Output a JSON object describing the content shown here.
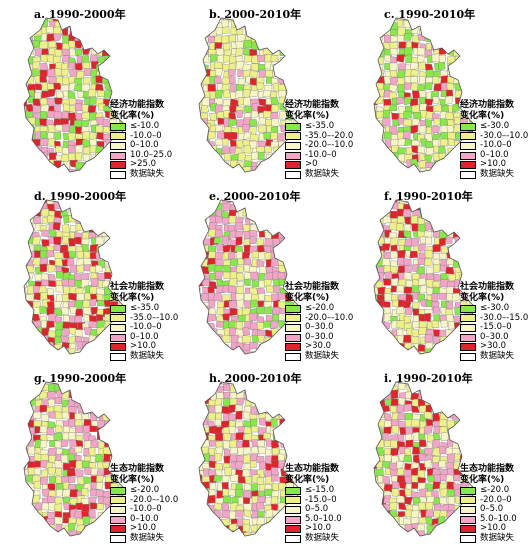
{
  "colors": {
    "green": "#86e84a",
    "yellow": "#eef08a",
    "cream": "#f8f6c6",
    "pink": "#f2a5c7",
    "red": "#e0242c",
    "missing": "#ffffff",
    "border": "#7a7a7a"
  },
  "panels": [
    {
      "title": "a. 1990-2000年",
      "legend_title": [
        "经济功能指数",
        "变化率(%)"
      ],
      "legend": [
        {
          "label": "≤-10.0",
          "color": "green"
        },
        {
          "label": "-10.0–0",
          "color": "yellow"
        },
        {
          "label": "0–10.0",
          "color": "cream"
        },
        {
          "label": "10.0–25.0",
          "color": "pink"
        },
        {
          "label": ">25.0",
          "color": "red"
        },
        {
          "label": "数据缺失",
          "color": "missing"
        }
      ],
      "distribution": {
        "green": 0.18,
        "yellow": 0.32,
        "cream": 0.16,
        "pink": 0.16,
        "red": 0.18
      }
    },
    {
      "title": "b. 2000-2010年",
      "legend_title": [
        "经济功能指数",
        "变化率(%)"
      ],
      "legend": [
        {
          "label": "≤-35.0",
          "color": "green"
        },
        {
          "label": "-35.0–-20.0",
          "color": "yellow"
        },
        {
          "label": "-20.0–-10.0",
          "color": "cream"
        },
        {
          "label": "-10.0–0",
          "color": "pink"
        },
        {
          "label": ">0",
          "color": "red"
        },
        {
          "label": "数据缺失",
          "color": "missing"
        }
      ],
      "distribution": {
        "green": 0.14,
        "yellow": 0.36,
        "cream": 0.32,
        "pink": 0.12,
        "red": 0.06
      }
    },
    {
      "title": "c. 1990-2010年",
      "legend_title": [
        "经济功能指数",
        "变化率(%)"
      ],
      "legend": [
        {
          "label": "≤-30.0",
          "color": "green"
        },
        {
          "label": "-30.0–-10.0",
          "color": "yellow"
        },
        {
          "label": "-10.0–0",
          "color": "cream"
        },
        {
          "label": "0–10.0",
          "color": "pink"
        },
        {
          "label": ">10.0",
          "color": "red"
        },
        {
          "label": "数据缺失",
          "color": "missing"
        }
      ],
      "distribution": {
        "green": 0.22,
        "yellow": 0.34,
        "cream": 0.22,
        "pink": 0.1,
        "red": 0.12
      }
    },
    {
      "title": "d. 1990-2000年",
      "legend_title": [
        "社会功能指数",
        "变化率(%)"
      ],
      "legend": [
        {
          "label": "≤-35.0",
          "color": "green"
        },
        {
          "label": "-35.0–-10.0",
          "color": "yellow"
        },
        {
          "label": "-10.0–0",
          "color": "cream"
        },
        {
          "label": "0–10.0",
          "color": "pink"
        },
        {
          "label": ">10.0",
          "color": "red"
        },
        {
          "label": "数据缺失",
          "color": "missing"
        }
      ],
      "distribution": {
        "green": 0.1,
        "yellow": 0.3,
        "cream": 0.2,
        "pink": 0.22,
        "red": 0.18
      }
    },
    {
      "title": "e. 2000-2010年",
      "legend_title": [
        "社会功能指数",
        "变化率(%)"
      ],
      "legend": [
        {
          "label": "≤-20.0",
          "color": "green"
        },
        {
          "label": "-20.0–-10.0",
          "color": "yellow"
        },
        {
          "label": "0–30.0",
          "color": "cream"
        },
        {
          "label": "0–30.0",
          "color": "pink"
        },
        {
          "label": ">30.0",
          "color": "red"
        },
        {
          "label": "数据缺失",
          "color": "missing"
        }
      ],
      "distribution": {
        "green": 0.16,
        "yellow": 0.2,
        "cream": 0.12,
        "pink": 0.38,
        "red": 0.14
      }
    },
    {
      "title": "f. 1990-2010年",
      "legend_title": [
        "社会功能指数",
        "变化率(%)"
      ],
      "legend": [
        {
          "label": "≤-30.0",
          "color": "green"
        },
        {
          "label": "-30.0–-15.0",
          "color": "yellow"
        },
        {
          "label": "-15.0–0",
          "color": "cream"
        },
        {
          "label": "0–30.0",
          "color": "pink"
        },
        {
          "label": ">30.0",
          "color": "red"
        },
        {
          "label": "数据缺失",
          "color": "missing"
        }
      ],
      "distribution": {
        "green": 0.12,
        "yellow": 0.26,
        "cream": 0.2,
        "pink": 0.24,
        "red": 0.18
      }
    },
    {
      "title": "g. 1990-2000年",
      "legend_title": [
        "生态功能指数",
        "变化率(%)"
      ],
      "legend": [
        {
          "label": "≤-20.0",
          "color": "green"
        },
        {
          "label": "-20.0–-10.0",
          "color": "yellow"
        },
        {
          "label": "-10.0–0",
          "color": "cream"
        },
        {
          "label": "0–10.0",
          "color": "pink"
        },
        {
          "label": ">10.0",
          "color": "red"
        },
        {
          "label": "数据缺失",
          "color": "missing"
        }
      ],
      "distribution": {
        "green": 0.1,
        "yellow": 0.3,
        "cream": 0.2,
        "pink": 0.3,
        "red": 0.1
      }
    },
    {
      "title": "h. 2000-2010年",
      "legend_title": [
        "生态功能指数",
        "变化率(%)"
      ],
      "legend": [
        {
          "label": "≤-15.0",
          "color": "green"
        },
        {
          "label": "-15.0–0",
          "color": "yellow"
        },
        {
          "label": "0–5.0",
          "color": "cream"
        },
        {
          "label": "5.0–10.0",
          "color": "pink"
        },
        {
          "label": ">10.0",
          "color": "red"
        },
        {
          "label": "数据缺失",
          "color": "missing"
        }
      ],
      "distribution": {
        "green": 0.08,
        "yellow": 0.3,
        "cream": 0.24,
        "pink": 0.22,
        "red": 0.16
      }
    },
    {
      "title": "i. 1990-2010年",
      "legend_title": [
        "生态功能指数",
        "变化率(%)"
      ],
      "legend": [
        {
          "label": "≤-20.0",
          "color": "green"
        },
        {
          "label": "-20.0–0",
          "color": "yellow"
        },
        {
          "label": "0–5.0",
          "color": "cream"
        },
        {
          "label": "5.0–10.0",
          "color": "pink"
        },
        {
          "label": ">10.0",
          "color": "red"
        },
        {
          "label": "数据缺失",
          "color": "missing"
        }
      ],
      "distribution": {
        "green": 0.12,
        "yellow": 0.26,
        "cream": 0.18,
        "pink": 0.2,
        "red": 0.24
      }
    }
  ]
}
